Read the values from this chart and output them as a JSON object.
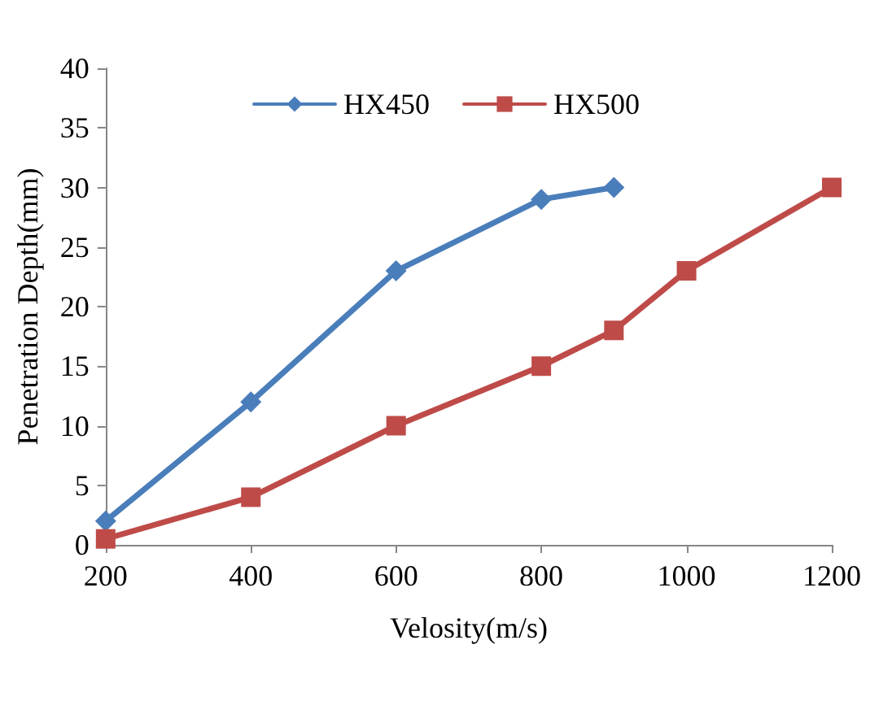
{
  "chart_data": {
    "type": "line",
    "xlabel": "Velosity(m/s)",
    "ylabel": "Penetration Depth(mm)",
    "xlim": [
      200,
      1200
    ],
    "xticks": [
      200,
      400,
      600,
      800,
      1000,
      1200
    ],
    "ylim": [
      0,
      40
    ],
    "yticks": [
      0,
      5,
      10,
      15,
      20,
      25,
      30,
      35,
      40
    ],
    "grid": false,
    "legend": "top",
    "line_style": "solid",
    "series": [
      {
        "name": "HX450",
        "color": "#4a7ebb",
        "marker": "diamond",
        "x": [
          200,
          400,
          600,
          800,
          900
        ],
        "values": [
          2,
          12,
          23,
          29,
          30
        ]
      },
      {
        "name": "HX500",
        "color": "#be4b48",
        "marker": "square",
        "x": [
          200,
          400,
          600,
          800,
          900,
          1000,
          1200
        ],
        "values": [
          0.5,
          4,
          10,
          15,
          18,
          23,
          30
        ]
      }
    ]
  }
}
